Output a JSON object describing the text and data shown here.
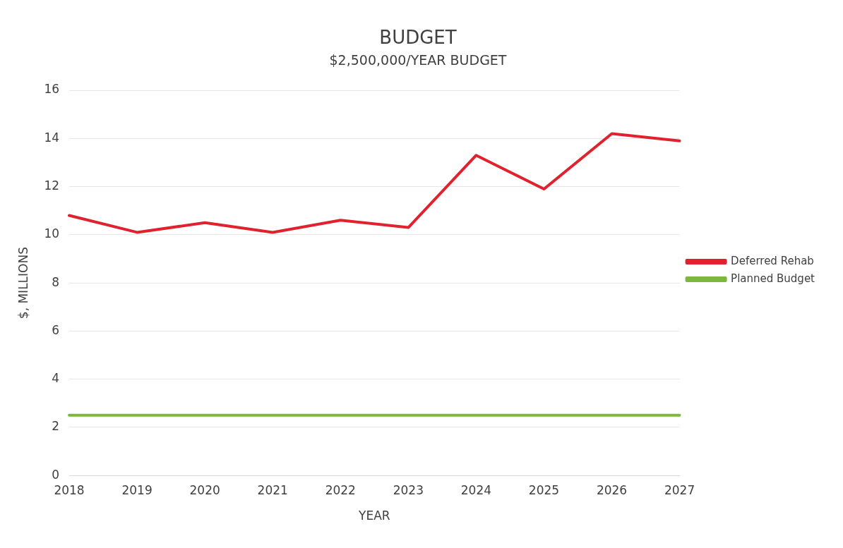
{
  "chart_data": {
    "type": "line",
    "title": "BUDGET",
    "subtitle": "$2,500,000/YEAR BUDGET",
    "xlabel": "YEAR",
    "ylabel": "$, MILLIONS",
    "categories": [
      "2018",
      "2019",
      "2020",
      "2021",
      "2022",
      "2023",
      "2024",
      "2025",
      "2026",
      "2027"
    ],
    "series": [
      {
        "name": "Deferred Rehab",
        "color": "#e0222e",
        "values": [
          10.8,
          10.1,
          10.5,
          10.1,
          10.6,
          10.3,
          13.3,
          11.9,
          14.2,
          13.9
        ]
      },
      {
        "name": "Planned Budget",
        "color": "#7cb83e",
        "values": [
          2.5,
          2.5,
          2.5,
          2.5,
          2.5,
          2.5,
          2.5,
          2.5,
          2.5,
          2.5
        ]
      }
    ],
    "ylim": [
      0,
      16
    ],
    "yticks": [
      0,
      2,
      4,
      6,
      8,
      10,
      12,
      14,
      16
    ],
    "grid": "y",
    "legend": "right",
    "marker": "none",
    "line_style": "solid"
  }
}
